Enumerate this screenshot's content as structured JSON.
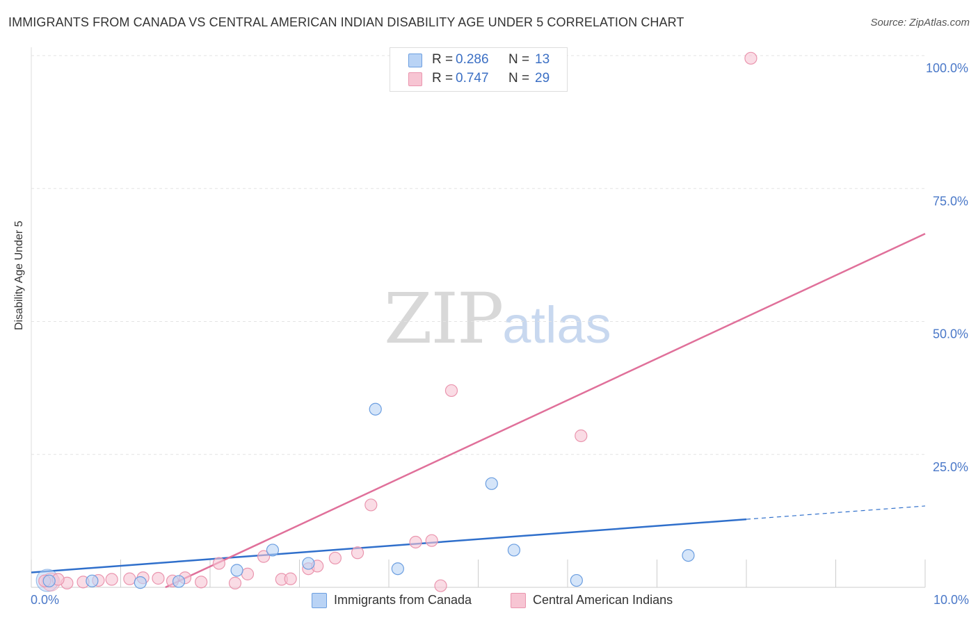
{
  "header": {
    "title": "IMMIGRANTS FROM CANADA VS CENTRAL AMERICAN INDIAN DISABILITY AGE UNDER 5 CORRELATION CHART",
    "source": "Source: ZipAtlas.com"
  },
  "watermark": {
    "zip": "ZIP",
    "atlas": "atlas"
  },
  "legend": {
    "r_label": "R =",
    "n_label": "N =",
    "entries": [
      {
        "r": "0.286",
        "n": "13"
      },
      {
        "r": "0.747",
        "n": "29"
      }
    ]
  },
  "colors": {
    "series_blue_fill": "#b9d3f5",
    "series_blue_stroke": "#6b9ee0",
    "series_blue_line": "#2f6fcb",
    "series_pink_fill": "#f7c5d3",
    "series_pink_stroke": "#ea95ae",
    "series_pink_line": "#e0709a",
    "axis_tick_label": "#4a78c8",
    "grid": "#e3e3e3"
  },
  "chart_data": {
    "type": "scatter",
    "title": "IMMIGRANTS FROM CANADA VS CENTRAL AMERICAN INDIAN DISABILITY AGE UNDER 5 CORRELATION CHART",
    "xlabel": "",
    "ylabel": "Disability Age Under 5",
    "xlim": [
      0,
      10
    ],
    "ylim": [
      0,
      100
    ],
    "x_tick_labels": [
      "0.0%",
      "10.0%"
    ],
    "y_ticks": [
      25,
      50,
      75,
      100
    ],
    "y_tick_labels": [
      "25.0%",
      "50.0%",
      "75.0%",
      "100.0%"
    ],
    "grid": true,
    "series": [
      {
        "name": "Immigrants from Canada",
        "color": "#b9d3f5",
        "points": [
          {
            "x": 0.2,
            "y": 1.2
          },
          {
            "x": 0.68,
            "y": 1.2
          },
          {
            "x": 1.22,
            "y": 0.9
          },
          {
            "x": 1.65,
            "y": 1.1
          },
          {
            "x": 2.3,
            "y": 3.2
          },
          {
            "x": 2.7,
            "y": 7.0
          },
          {
            "x": 3.1,
            "y": 4.5
          },
          {
            "x": 3.85,
            "y": 33.5
          },
          {
            "x": 4.1,
            "y": 3.5
          },
          {
            "x": 5.15,
            "y": 19.5
          },
          {
            "x": 5.4,
            "y": 7.0
          },
          {
            "x": 6.1,
            "y": 1.3
          },
          {
            "x": 7.35,
            "y": 6.0
          }
        ],
        "trend": {
          "x0": 0,
          "y0": 2.8,
          "x1": 8.0,
          "y1": 12.8,
          "dashed_to_x": 10.0,
          "dashed_to_y": 15.3
        }
      },
      {
        "name": "Central American Indians",
        "color": "#f7c5d3",
        "points": [
          {
            "x": 0.15,
            "y": 1.2
          },
          {
            "x": 0.4,
            "y": 0.8
          },
          {
            "x": 0.58,
            "y": 1.0
          },
          {
            "x": 0.75,
            "y": 1.3
          },
          {
            "x": 0.9,
            "y": 1.5
          },
          {
            "x": 1.1,
            "y": 1.6
          },
          {
            "x": 1.25,
            "y": 1.8
          },
          {
            "x": 1.42,
            "y": 1.7
          },
          {
            "x": 1.58,
            "y": 1.2
          },
          {
            "x": 1.72,
            "y": 1.8
          },
          {
            "x": 1.9,
            "y": 1.0
          },
          {
            "x": 2.1,
            "y": 4.5
          },
          {
            "x": 2.28,
            "y": 0.8
          },
          {
            "x": 2.42,
            "y": 2.5
          },
          {
            "x": 2.6,
            "y": 5.8
          },
          {
            "x": 2.8,
            "y": 1.5
          },
          {
            "x": 2.9,
            "y": 1.6
          },
          {
            "x": 3.1,
            "y": 3.5
          },
          {
            "x": 3.2,
            "y": 4.0
          },
          {
            "x": 3.4,
            "y": 5.5
          },
          {
            "x": 3.65,
            "y": 6.5
          },
          {
            "x": 3.8,
            "y": 15.5
          },
          {
            "x": 4.3,
            "y": 8.5
          },
          {
            "x": 4.48,
            "y": 8.8
          },
          {
            "x": 4.58,
            "y": 0.3
          },
          {
            "x": 4.7,
            "y": 37.0
          },
          {
            "x": 6.15,
            "y": 28.5
          },
          {
            "x": 8.05,
            "y": 99.5
          },
          {
            "x": 0.3,
            "y": 1.5
          }
        ],
        "trend": {
          "x0": 1.5,
          "y0": 0,
          "x1": 10.0,
          "y1": 66.5
        }
      }
    ]
  }
}
